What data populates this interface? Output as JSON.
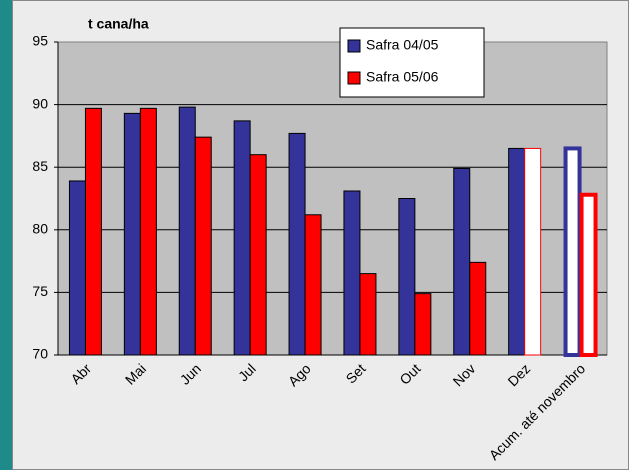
{
  "chart_data": {
    "type": "bar",
    "y_label": "t cana/ha",
    "categories": [
      "Abr",
      "Mai",
      "Jun",
      "Jul",
      "Ago",
      "Set",
      "Out",
      "Nov",
      "Dez",
      "Acum. até novembro"
    ],
    "series": [
      {
        "name": "Safra 04/05",
        "color": "#333399",
        "values": [
          83.9,
          89.3,
          89.8,
          88.7,
          87.7,
          83.1,
          82.5,
          84.9,
          86.5,
          86.5
        ],
        "fill_style": [
          "solid",
          "solid",
          "solid",
          "solid",
          "solid",
          "solid",
          "solid",
          "solid",
          "solid",
          "hollow"
        ]
      },
      {
        "name": "Safra 05/06",
        "color": "#ff0000",
        "values": [
          89.7,
          89.7,
          87.4,
          86.0,
          81.2,
          76.5,
          74.9,
          77.4,
          86.5,
          82.8
        ],
        "fill_style": [
          "solid",
          "solid",
          "solid",
          "solid",
          "solid",
          "solid",
          "solid",
          "solid",
          "hollow",
          "hollow"
        ]
      }
    ],
    "ylim": [
      70,
      95
    ],
    "yticks": [
      70,
      75,
      80,
      85,
      90,
      95
    ],
    "grid": true,
    "legend": "top-right"
  }
}
